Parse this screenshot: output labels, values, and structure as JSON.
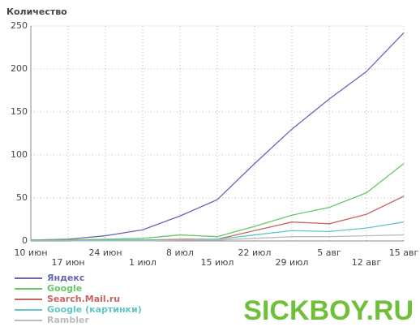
{
  "chart_data": {
    "type": "line",
    "y_label": "Количество",
    "categories": [
      "10 июн",
      "17 июн",
      "24 июн",
      "1 июл",
      "8 июл",
      "15 июл",
      "22 июл",
      "29 июл",
      "5 авг",
      "12 авг",
      "15 авг"
    ],
    "series": [
      {
        "name": "Яндекс",
        "color": "#6666b4",
        "values": [
          1,
          2,
          6,
          13,
          29,
          48,
          90,
          130,
          165,
          197,
          242
        ]
      },
      {
        "name": "Google",
        "color": "#66c866",
        "values": [
          1,
          1,
          2,
          3,
          7,
          5,
          17,
          30,
          39,
          56,
          90
        ]
      },
      {
        "name": "Search.Mail.ru",
        "color": "#c86464",
        "values": [
          0,
          0,
          1,
          1,
          2,
          2,
          12,
          22,
          20,
          31,
          52
        ]
      },
      {
        "name": "Google (картинки)",
        "color": "#5ec8c8",
        "values": [
          0,
          0,
          1,
          1,
          1,
          2,
          7,
          12,
          11,
          15,
          22
        ]
      },
      {
        "name": "Rambler",
        "color": "#bbbbbb",
        "values": [
          0,
          0,
          0,
          0,
          1,
          1,
          3,
          5,
          5,
          6,
          7
        ]
      }
    ],
    "ylim": [
      0,
      250
    ],
    "yticks": [
      0,
      50,
      100,
      150,
      200,
      250
    ],
    "grid": true,
    "watermark": "SICKBOY.RU"
  }
}
